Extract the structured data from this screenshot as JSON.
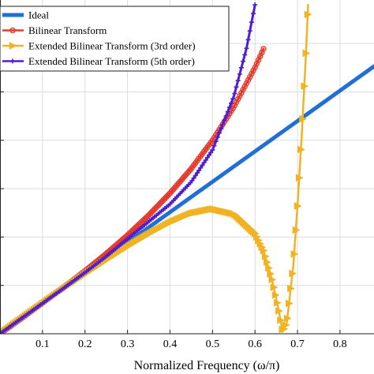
{
  "chart_data": {
    "type": "line",
    "title": "",
    "xlabel": "Normalized Frequency (ω/π)",
    "ylabel": "",
    "xlim": [
      0.0,
      0.88
    ],
    "ylim": [
      0.0,
      3.45
    ],
    "xticks": [
      "0.1",
      "0.2",
      "0.3",
      "0.4",
      "0.5",
      "0.6",
      "0.7",
      "0.8"
    ],
    "xtick_values": [
      0.1,
      0.2,
      0.3,
      0.4,
      0.5,
      0.6,
      0.7,
      0.8
    ],
    "ytick_values": [
      0.5,
      1.0,
      1.5,
      2.0,
      2.5,
      3.0
    ],
    "grid": true,
    "legend_position": "top-left",
    "series": [
      {
        "name": "Ideal",
        "color": "#1f6fd6",
        "marker": "none",
        "x": [
          0.0,
          0.1,
          0.2,
          0.3,
          0.4,
          0.5,
          0.6,
          0.7,
          0.8,
          0.88
        ],
        "y": [
          0.0,
          0.314,
          0.628,
          0.942,
          1.257,
          1.571,
          1.885,
          2.199,
          2.513,
          2.765
        ]
      },
      {
        "name": "Bilinear Transform",
        "color": "#e63a2c",
        "marker": "circle",
        "x": [
          0.0,
          0.05,
          0.1,
          0.15,
          0.2,
          0.25,
          0.3,
          0.35,
          0.4,
          0.45,
          0.5,
          0.55,
          0.6,
          0.62
        ],
        "y": [
          0.0,
          0.157,
          0.317,
          0.482,
          0.65,
          0.828,
          1.019,
          1.226,
          1.453,
          1.707,
          2.0,
          2.343,
          2.753,
          2.945
        ]
      },
      {
        "name": "Extended Bilinear Transform (3rd order)",
        "color": "#f0b323",
        "marker": "triangle-right",
        "x": [
          0.0,
          0.05,
          0.1,
          0.15,
          0.2,
          0.25,
          0.3,
          0.35,
          0.4,
          0.45,
          0.5,
          0.55,
          0.6,
          0.62,
          0.64,
          0.655,
          0.665,
          0.675,
          0.69,
          0.7,
          0.71,
          0.72,
          0.725
        ],
        "y": [
          0.0,
          0.157,
          0.313,
          0.467,
          0.617,
          0.763,
          0.902,
          1.032,
          1.15,
          1.245,
          1.29,
          1.24,
          1.035,
          0.86,
          0.56,
          0.26,
          0.02,
          0.12,
          0.7,
          1.32,
          2.05,
          2.9,
          3.4
        ]
      },
      {
        "name": "Extended Bilinear Transform (5th order)",
        "color": "#4e1fd1",
        "marker": "plus",
        "x": [
          0.0,
          0.05,
          0.1,
          0.15,
          0.2,
          0.25,
          0.3,
          0.35,
          0.4,
          0.45,
          0.5,
          0.55,
          0.58,
          0.6
        ],
        "y": [
          0.0,
          0.157,
          0.314,
          0.472,
          0.633,
          0.8,
          0.98,
          1.16,
          1.34,
          1.57,
          1.9,
          2.45,
          2.95,
          3.4
        ]
      }
    ]
  }
}
